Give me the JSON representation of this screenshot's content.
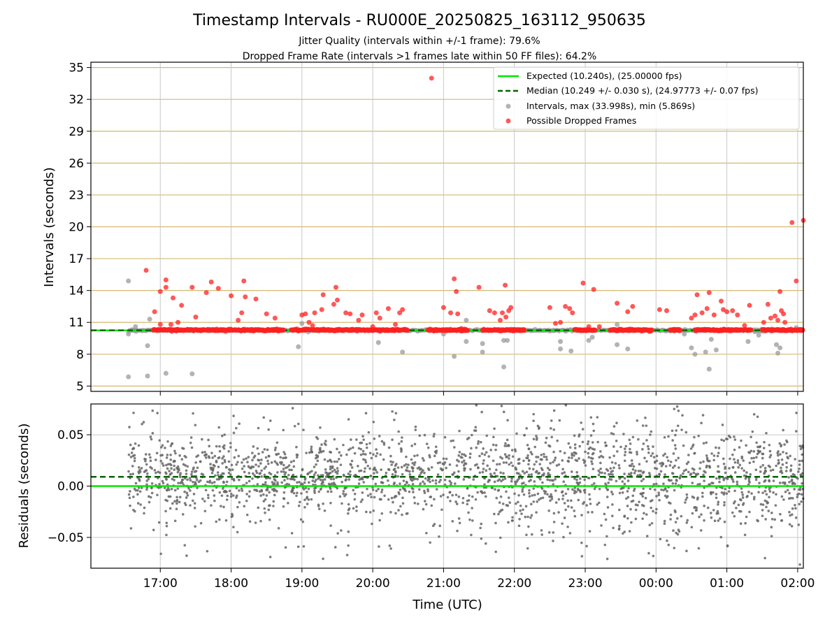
{
  "title": "Timestamp Intervals - RU000E_20250825_163112_950635",
  "subtitle_jitter": "Jitter Quality (intervals within +/-1 frame): 79.6%",
  "subtitle_dropped": "Dropped Frame Rate (intervals >1 frames late within 50 FF files): 64.2%",
  "colors": {
    "expected": "#00e600",
    "median": "#006400",
    "intervals": "#999999",
    "dropped": "#ff2020",
    "hgrid": "#d4b870",
    "vgrid": "#c8c8c8",
    "residual": "#666666"
  },
  "chart_data": [
    {
      "type": "scatter",
      "ylabel": "Intervals (seconds)",
      "xlim_hours": [
        16.02,
        26.08
      ],
      "ylim": [
        4.5,
        35.5
      ],
      "yticks": [
        5,
        8,
        11,
        14,
        17,
        20,
        23,
        26,
        29,
        32,
        35
      ],
      "grid": true,
      "legend_position": "upper-right",
      "expected_value": 10.24,
      "median_value": 10.249,
      "legend": [
        "Expected (10.240s), (25.00000 fps)",
        "Median (10.249 +/- 0.030 s), (24.97773 +/- 0.07 fps)",
        "Intervals, max (33.998s), min (5.869s)",
        "Possible Dropped Frames"
      ],
      "notable_intervals": [
        [
          16.55,
          14.9
        ],
        [
          16.55,
          5.87
        ],
        [
          16.55,
          9.9
        ],
        [
          16.6,
          10.3
        ],
        [
          16.65,
          10.6
        ],
        [
          16.82,
          5.95
        ],
        [
          16.82,
          8.8
        ],
        [
          16.85,
          11.3
        ],
        [
          17.08,
          6.2
        ],
        [
          17.45,
          6.15
        ],
        [
          18.95,
          8.7
        ],
        [
          19.0,
          10.9
        ],
        [
          20.08,
          9.1
        ],
        [
          20.42,
          8.2
        ],
        [
          21.0,
          9.9
        ],
        [
          21.15,
          7.8
        ],
        [
          21.32,
          9.2
        ],
        [
          21.32,
          11.2
        ],
        [
          21.55,
          8.2
        ],
        [
          21.55,
          9.0
        ],
        [
          21.85,
          9.3
        ],
        [
          21.85,
          6.8
        ],
        [
          21.9,
          9.3
        ],
        [
          22.65,
          9.2
        ],
        [
          22.65,
          8.5
        ],
        [
          22.8,
          8.3
        ],
        [
          23.05,
          9.3
        ],
        [
          23.1,
          9.6
        ],
        [
          23.2,
          10.3
        ],
        [
          23.45,
          10.8
        ],
        [
          23.45,
          8.9
        ],
        [
          23.6,
          8.5
        ],
        [
          24.4,
          9.9
        ],
        [
          24.5,
          8.6
        ],
        [
          24.55,
          8.0
        ],
        [
          24.7,
          8.2
        ],
        [
          24.75,
          6.6
        ],
        [
          24.78,
          9.4
        ],
        [
          24.85,
          8.4
        ],
        [
          25.3,
          9.2
        ],
        [
          25.45,
          9.8
        ],
        [
          25.7,
          8.9
        ],
        [
          25.72,
          8.1
        ],
        [
          25.75,
          8.6
        ],
        [
          25.98,
          10.5
        ]
      ],
      "dropped_frames": [
        [
          16.8,
          15.9
        ],
        [
          16.92,
          12.0
        ],
        [
          17.0,
          13.9
        ],
        [
          17.0,
          10.8
        ],
        [
          17.08,
          15.0
        ],
        [
          17.08,
          14.3
        ],
        [
          17.15,
          10.8
        ],
        [
          17.18,
          13.3
        ],
        [
          17.25,
          11.0
        ],
        [
          17.3,
          12.6
        ],
        [
          17.45,
          14.3
        ],
        [
          17.5,
          11.5
        ],
        [
          17.65,
          13.8
        ],
        [
          17.72,
          14.8
        ],
        [
          17.82,
          14.2
        ],
        [
          18.0,
          13.5
        ],
        [
          18.1,
          11.2
        ],
        [
          18.15,
          11.9
        ],
        [
          18.18,
          14.9
        ],
        [
          18.2,
          13.4
        ],
        [
          18.35,
          13.2
        ],
        [
          18.5,
          11.8
        ],
        [
          18.62,
          11.4
        ],
        [
          19.0,
          11.7
        ],
        [
          19.05,
          11.8
        ],
        [
          19.1,
          11.0
        ],
        [
          19.15,
          10.7
        ],
        [
          19.18,
          11.9
        ],
        [
          19.28,
          12.2
        ],
        [
          19.3,
          13.6
        ],
        [
          19.45,
          12.7
        ],
        [
          19.48,
          14.3
        ],
        [
          19.5,
          13.1
        ],
        [
          19.62,
          11.9
        ],
        [
          19.68,
          11.8
        ],
        [
          19.8,
          11.2
        ],
        [
          19.85,
          11.7
        ],
        [
          20.0,
          10.6
        ],
        [
          20.05,
          11.9
        ],
        [
          20.1,
          11.4
        ],
        [
          20.22,
          12.3
        ],
        [
          20.32,
          10.8
        ],
        [
          20.38,
          11.9
        ],
        [
          20.42,
          12.2
        ],
        [
          20.83,
          33.998
        ],
        [
          21.0,
          12.4
        ],
        [
          21.1,
          11.9
        ],
        [
          21.15,
          15.1
        ],
        [
          21.18,
          13.9
        ],
        [
          21.2,
          11.8
        ],
        [
          21.5,
          14.3
        ],
        [
          21.65,
          12.1
        ],
        [
          21.72,
          11.9
        ],
        [
          21.8,
          11.2
        ],
        [
          21.83,
          11.9
        ],
        [
          21.87,
          14.5
        ],
        [
          21.88,
          11.5
        ],
        [
          21.92,
          12.1
        ],
        [
          21.95,
          12.4
        ],
        [
          22.5,
          12.4
        ],
        [
          22.58,
          10.9
        ],
        [
          22.65,
          11.0
        ],
        [
          22.72,
          12.5
        ],
        [
          22.78,
          12.3
        ],
        [
          22.82,
          11.9
        ],
        [
          22.97,
          14.7
        ],
        [
          23.05,
          10.6
        ],
        [
          23.12,
          14.1
        ],
        [
          23.2,
          10.6
        ],
        [
          23.45,
          12.8
        ],
        [
          23.6,
          12.0
        ],
        [
          23.67,
          12.5
        ],
        [
          24.05,
          12.2
        ],
        [
          24.15,
          12.1
        ],
        [
          24.5,
          11.4
        ],
        [
          24.55,
          11.7
        ],
        [
          24.58,
          13.6
        ],
        [
          24.65,
          11.9
        ],
        [
          24.72,
          12.3
        ],
        [
          24.75,
          13.8
        ],
        [
          24.82,
          11.7
        ],
        [
          24.92,
          13.0
        ],
        [
          24.95,
          12.2
        ],
        [
          25.0,
          12.0
        ],
        [
          25.08,
          12.1
        ],
        [
          25.15,
          11.7
        ],
        [
          25.25,
          10.7
        ],
        [
          25.32,
          12.6
        ],
        [
          25.52,
          11.0
        ],
        [
          25.58,
          12.7
        ],
        [
          25.62,
          11.4
        ],
        [
          25.68,
          11.6
        ],
        [
          25.72,
          11.2
        ],
        [
          25.75,
          13.9
        ],
        [
          25.77,
          12.1
        ],
        [
          25.8,
          11.8
        ],
        [
          25.82,
          11.0
        ],
        [
          25.92,
          20.4
        ],
        [
          25.98,
          14.9
        ],
        [
          26.08,
          20.6
        ]
      ]
    },
    {
      "type": "scatter",
      "ylabel": "Residuals (seconds)",
      "xlabel": "Time (UTC)",
      "xlim_hours": [
        16.02,
        26.08
      ],
      "ylim": [
        -0.08,
        0.08
      ],
      "yticks": [
        -0.05,
        0.0,
        0.05
      ],
      "ytick_labels": [
        "−0.05",
        "0.00",
        "0.05"
      ],
      "grid": true,
      "expected_residual": 0.0,
      "median_residual": 0.009,
      "residual_spread": [
        -0.08,
        0.08
      ],
      "xtick_hours": [
        17,
        18,
        19,
        20,
        21,
        22,
        23,
        24,
        25,
        26
      ],
      "xtick_labels": [
        "17:00",
        "18:00",
        "19:00",
        "20:00",
        "21:00",
        "22:00",
        "23:00",
        "00:00",
        "01:00",
        "02:00"
      ]
    }
  ]
}
